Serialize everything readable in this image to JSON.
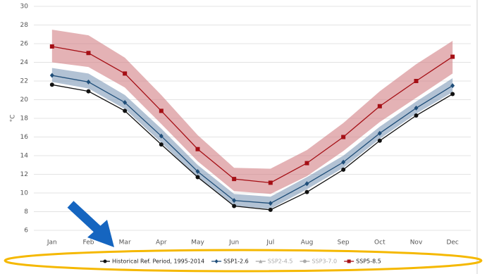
{
  "chart_data": {
    "type": "line",
    "y_label": "°C",
    "categories": [
      "Jan",
      "Feb",
      "Mar",
      "Apr",
      "May",
      "Jun",
      "Jul",
      "Aug",
      "Sep",
      "Oct",
      "Nov",
      "Dec"
    ],
    "ylim": [
      6,
      30
    ],
    "yticks": [
      6,
      8,
      10,
      12,
      14,
      16,
      18,
      20,
      22,
      24,
      26,
      28,
      30
    ],
    "grid": true,
    "series": [
      {
        "name": "Historical Ref. Period, 1995-2014",
        "color": "#111111",
        "marker": "circle",
        "values": [
          21.6,
          20.9,
          18.8,
          15.2,
          11.7,
          8.6,
          8.2,
          10.1,
          12.5,
          15.6,
          18.3,
          20.6
        ]
      },
      {
        "name": "SSP1-2.6",
        "color": "#1f4e79",
        "band_color": "#7f9ab8",
        "marker": "diamond",
        "values": [
          22.6,
          21.9,
          19.7,
          16.1,
          12.3,
          9.2,
          8.9,
          11.0,
          13.3,
          16.4,
          19.1,
          21.5
        ],
        "low": [
          21.9,
          21.2,
          19.0,
          15.4,
          11.6,
          8.6,
          8.3,
          10.4,
          12.7,
          15.8,
          18.5,
          20.8
        ],
        "high": [
          23.4,
          22.8,
          20.5,
          16.9,
          13.0,
          9.9,
          9.6,
          11.7,
          14.0,
          17.1,
          19.8,
          22.3
        ]
      },
      {
        "name": "SSP2-4.5",
        "color": "#aaaaaa",
        "marker": "triangle",
        "hidden": true
      },
      {
        "name": "SSP3-7.0",
        "color": "#aaaaaa",
        "marker": "circle",
        "hidden": true
      },
      {
        "name": "SSP5-8.5",
        "color": "#a50f15",
        "band_color": "#d27f84",
        "marker": "square",
        "values": [
          25.7,
          25.0,
          22.8,
          18.8,
          14.7,
          11.5,
          11.1,
          13.2,
          16.0,
          19.3,
          22.0,
          24.6
        ],
        "low": [
          24.0,
          23.5,
          21.3,
          17.4,
          13.4,
          10.2,
          9.9,
          11.8,
          14.5,
          17.6,
          20.2,
          22.8
        ],
        "high": [
          27.5,
          26.9,
          24.5,
          20.5,
          16.2,
          12.7,
          12.6,
          14.6,
          17.5,
          20.9,
          23.8,
          26.3
        ]
      }
    ]
  }
}
